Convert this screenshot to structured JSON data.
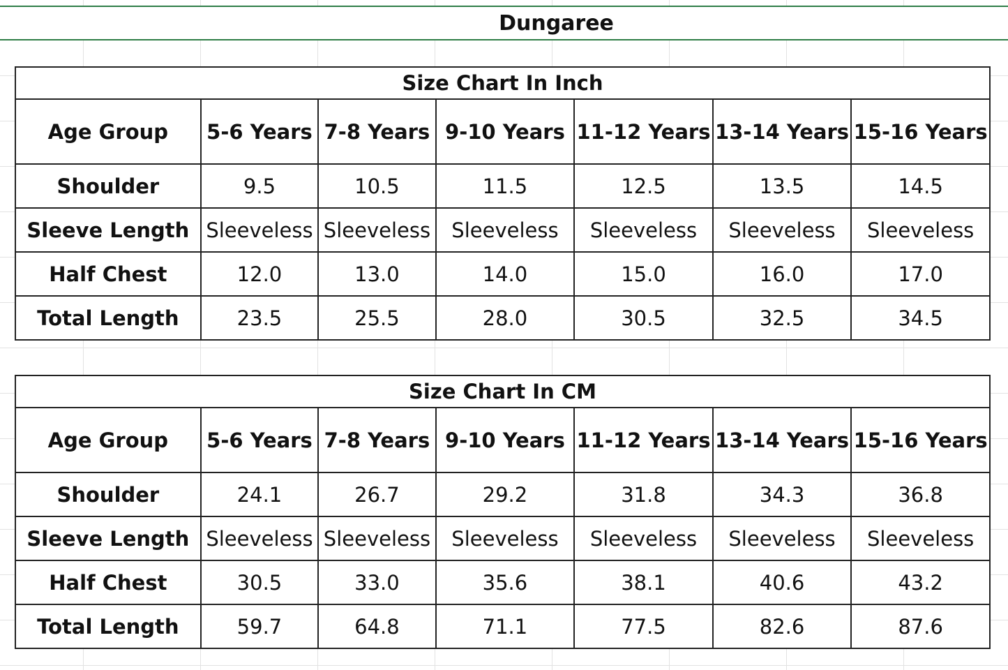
{
  "title": "Dungaree",
  "tables": [
    {
      "caption": "Size Chart In Inch",
      "header_label": "Age Group",
      "columns": [
        "5-6 Years",
        "7-8 Years",
        "9-10 Years",
        "11-12 Years",
        "13-14 Years",
        "15-16 Years"
      ],
      "rows": [
        {
          "label": "Shoulder",
          "values": [
            "9.5",
            "10.5",
            "11.5",
            "12.5",
            "13.5",
            "14.5"
          ]
        },
        {
          "label": "Sleeve Length",
          "values": [
            "Sleeveless",
            "Sleeveless",
            "Sleeveless",
            "Sleeveless",
            "Sleeveless",
            "Sleeveless"
          ]
        },
        {
          "label": "Half Chest",
          "values": [
            "12.0",
            "13.0",
            "14.0",
            "15.0",
            "16.0",
            "17.0"
          ]
        },
        {
          "label": "Total Length",
          "values": [
            "23.5",
            "25.5",
            "28.0",
            "30.5",
            "32.5",
            "34.5"
          ]
        }
      ]
    },
    {
      "caption": "Size Chart In CM",
      "header_label": "Age Group",
      "columns": [
        "5-6 Years",
        "7-8 Years",
        "9-10 Years",
        "11-12 Years",
        "13-14 Years",
        "15-16 Years"
      ],
      "rows": [
        {
          "label": "Shoulder",
          "values": [
            "24.1",
            "26.7",
            "29.2",
            "31.8",
            "34.3",
            "36.8"
          ]
        },
        {
          "label": "Sleeve Length",
          "values": [
            "Sleeveless",
            "Sleeveless",
            "Sleeveless",
            "Sleeveless",
            "Sleeveless",
            "Sleeveless"
          ]
        },
        {
          "label": "Half Chest",
          "values": [
            "30.5",
            "33.0",
            "35.6",
            "38.1",
            "40.6",
            "43.2"
          ]
        },
        {
          "label": "Total Length",
          "values": [
            "59.7",
            "64.8",
            "71.1",
            "77.5",
            "82.6",
            "87.6"
          ]
        }
      ]
    }
  ],
  "colors": {
    "title_border": "#2e7d46",
    "table_border": "#222222",
    "gridline": "#e2e2e2"
  }
}
